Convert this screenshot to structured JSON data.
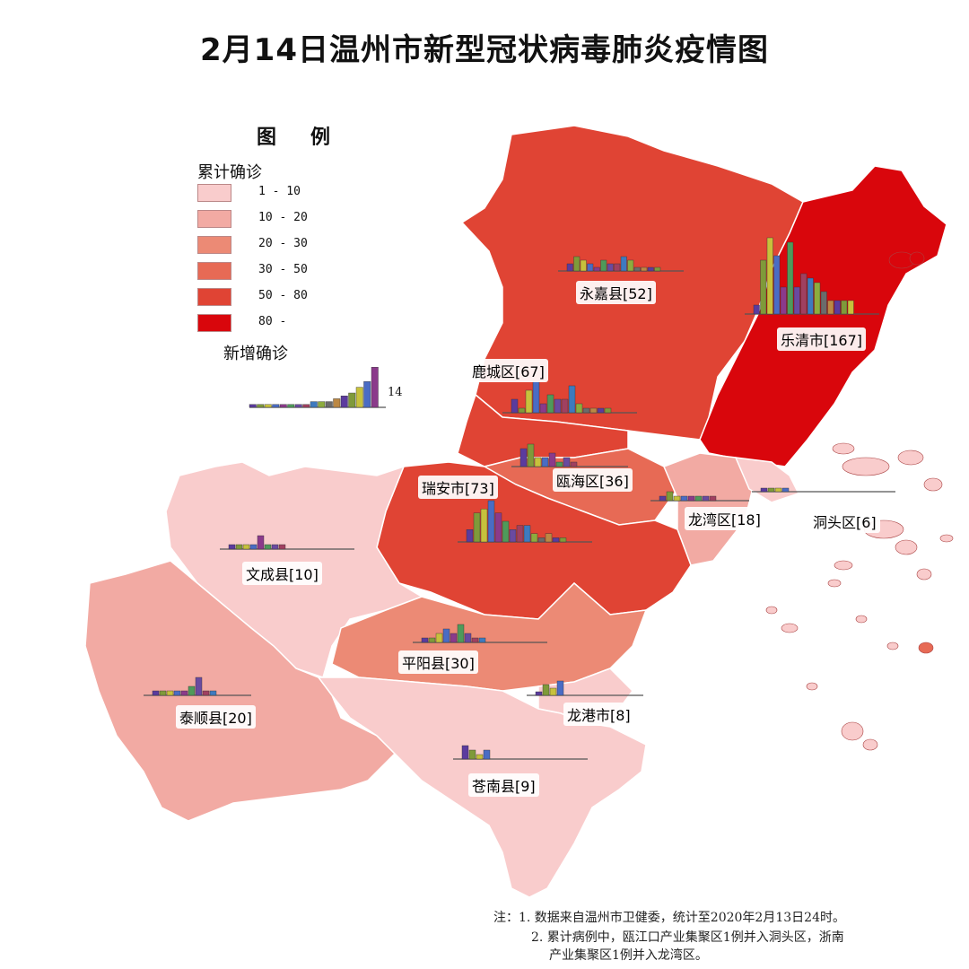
{
  "title": "2月14日温州市新型冠状病毒肺炎疫情图",
  "legend": {
    "heading": "图例",
    "cumulative_label": "累计确诊",
    "classes": [
      {
        "label": "1 - 10",
        "color": "#f9cccc"
      },
      {
        "label": "10 - 20",
        "color": "#f2aaa3"
      },
      {
        "label": "20 - 30",
        "color": "#ec8a75"
      },
      {
        "label": "30 - 50",
        "color": "#e76a55"
      },
      {
        "label": "50 - 80",
        "color": "#e04434"
      },
      {
        "label": "80 -",
        "color": "#d9060c"
      }
    ],
    "new_label": "新增确诊",
    "new_max_label": "14",
    "new_sample_series": [
      1,
      1,
      1,
      1,
      1,
      1,
      1,
      1,
      2,
      2,
      2,
      3,
      4,
      5,
      7,
      9,
      14
    ]
  },
  "regions": [
    {
      "id": "yongjia",
      "label": "永嘉县[52]",
      "cumulative": 52,
      "color": "#e04434",
      "bars": [
        2,
        4,
        3,
        2,
        1,
        3,
        2,
        2,
        4,
        3,
        1,
        1,
        1,
        1
      ]
    },
    {
      "id": "yueqing",
      "label": "乐清市[167]",
      "cumulative": 167,
      "color": "#d9060c",
      "bars": [
        2,
        12,
        17,
        13,
        6,
        16,
        6,
        9,
        8,
        7,
        5,
        3,
        3,
        3,
        3
      ]
    },
    {
      "id": "lucheng",
      "label": "鹿城区[67]",
      "cumulative": 67,
      "color": "#e04434",
      "bars": [
        3,
        1,
        5,
        7,
        2,
        4,
        3,
        3,
        6,
        2,
        1,
        1,
        1,
        1
      ]
    },
    {
      "id": "ouhai",
      "label": "瓯海区[36]",
      "cumulative": 36,
      "color": "#e76a55",
      "bars": [
        4,
        5,
        2,
        2,
        3,
        1,
        2,
        1
      ]
    },
    {
      "id": "longwan",
      "label": "龙湾区[18]",
      "cumulative": 18,
      "color": "#f2aaa3",
      "bars": [
        1,
        2,
        1,
        1,
        1,
        1,
        1,
        1
      ]
    },
    {
      "id": "dongtou",
      "label": "洞头区[6]",
      "cumulative": 6,
      "color": "#f9cccc",
      "bars": [
        1,
        1,
        1,
        1
      ]
    },
    {
      "id": "ruian",
      "label": "瑞安市[73]",
      "cumulative": 73,
      "color": "#e04434",
      "bars": [
        3,
        7,
        8,
        10,
        7,
        5,
        3,
        4,
        4,
        2,
        1,
        2,
        1,
        1
      ]
    },
    {
      "id": "wencheng",
      "label": "文成县[10]",
      "cumulative": 10,
      "color": "#f9cccc",
      "bars": [
        1,
        1,
        1,
        1,
        3,
        1,
        1,
        1
      ]
    },
    {
      "id": "pingyang",
      "label": "平阳县[30]",
      "cumulative": 30,
      "color": "#ec8a75",
      "bars": [
        1,
        1,
        2,
        3,
        2,
        4,
        2,
        1,
        1
      ]
    },
    {
      "id": "taishun",
      "label": "泰顺县[20]",
      "cumulative": 20,
      "color": "#f2aaa3",
      "bars": [
        1,
        1,
        1,
        1,
        1,
        2,
        4,
        1,
        1
      ]
    },
    {
      "id": "longgang",
      "label": "龙港市[8]",
      "cumulative": 8,
      "color": "#f9cccc",
      "bars": [
        1,
        3,
        2,
        4
      ]
    },
    {
      "id": "cangnan",
      "label": "苍南县[9]",
      "cumulative": 9,
      "color": "#f9cccc",
      "bars": [
        3,
        2,
        1,
        2
      ]
    }
  ],
  "bar_palette": [
    "#5b3b9e",
    "#7f9a3a",
    "#c7c13c",
    "#4a6cc4",
    "#8b3a8b",
    "#4f9a5a",
    "#6a4aa0",
    "#a04060",
    "#3e7abf",
    "#8dac3e",
    "#6b6b6b",
    "#bb8844"
  ],
  "notes": [
    "注：1. 数据来自温州市卫健委，统计至2020年2月13日24时。",
    "2. 累计病例中，瓯江口产业集聚区1例并入洞头区，浙南",
    "产业集聚区1例并入龙湾区。"
  ]
}
